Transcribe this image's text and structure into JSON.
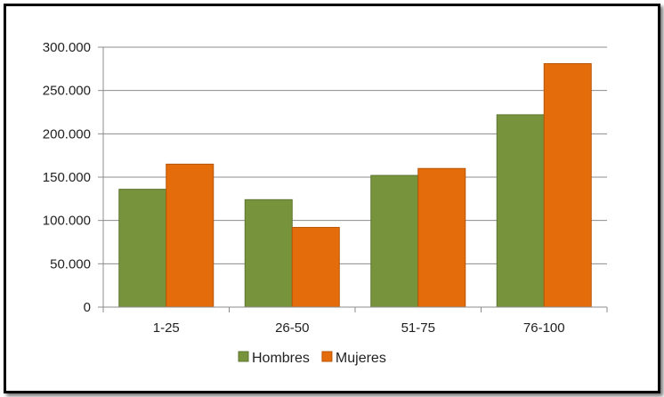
{
  "chart_data": {
    "type": "bar",
    "categories": [
      "1-25",
      "26-50",
      "51-75",
      "76-100"
    ],
    "series": [
      {
        "name": "Hombres",
        "values": [
          136000,
          124000,
          152000,
          222000
        ],
        "color": "#77933C"
      },
      {
        "name": "Mujeres",
        "values": [
          165000,
          92000,
          160000,
          281000
        ],
        "color": "#E46C0A"
      }
    ],
    "yticks": [
      "0",
      "50.000",
      "100.000",
      "150.000",
      "200.000",
      "250.000",
      "300.000"
    ],
    "ylim": [
      0,
      300000
    ],
    "grid": true,
    "legend": "bottom"
  }
}
